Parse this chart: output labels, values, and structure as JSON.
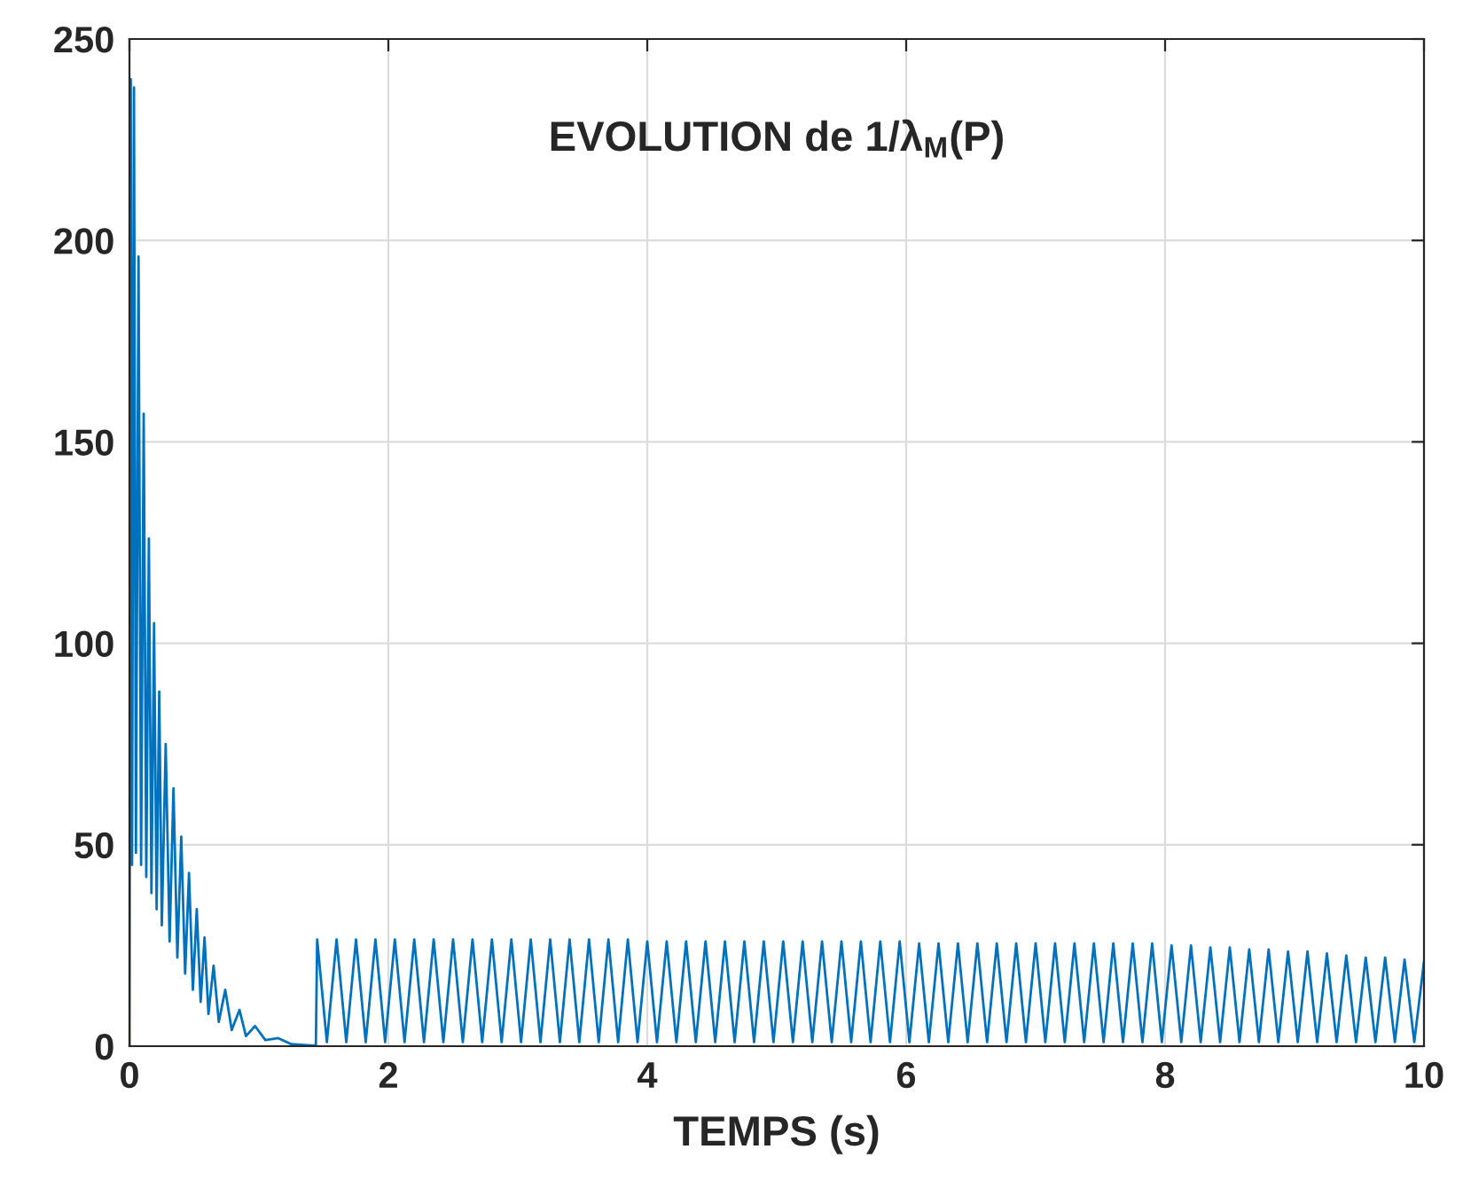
{
  "chart_data": {
    "type": "line",
    "title": "EVOLUTION de 1/λ$_{M}$(P)",
    "xlabel": "TEMPS (s)",
    "xlim": [
      0,
      10
    ],
    "xticks": [
      0,
      2,
      4,
      6,
      8,
      10
    ],
    "ylim": [
      0,
      250
    ],
    "yticks": [
      0,
      50,
      100,
      150,
      200,
      250
    ],
    "grid": true,
    "series": [
      {
        "color": "#0072bd",
        "x": [
          0,
          0.01,
          0.02,
          0.035,
          0.05,
          0.07,
          0.09,
          0.11,
          0.13,
          0.15,
          0.17,
          0.19,
          0.21,
          0.23,
          0.25,
          0.28,
          0.31,
          0.34,
          0.37,
          0.4,
          0.43,
          0.46,
          0.49,
          0.52,
          0.55,
          0.58,
          0.61,
          0.65,
          0.69,
          0.74,
          0.79,
          0.85,
          0.9,
          0.97,
          1.05,
          1.15,
          1.25,
          1.4,
          1.44,
          1.45,
          1.525,
          1.6,
          1.675,
          1.75,
          1.825,
          1.9,
          1.975,
          2.05,
          2.125,
          2.2,
          2.275,
          2.35,
          2.425,
          2.5,
          2.575,
          2.65,
          2.725,
          2.8,
          2.875,
          2.95,
          3.025,
          3.1,
          3.175,
          3.25,
          3.325,
          3.4,
          3.475,
          3.55,
          3.625,
          3.7,
          3.775,
          3.85,
          3.925,
          4.0,
          4.075,
          4.15,
          4.225,
          4.3,
          4.375,
          4.45,
          4.525,
          4.6,
          4.675,
          4.75,
          4.825,
          4.9,
          4.975,
          5.05,
          5.125,
          5.2,
          5.275,
          5.35,
          5.425,
          5.5,
          5.575,
          5.65,
          5.725,
          5.8,
          5.875,
          5.95,
          6.025,
          6.1,
          6.175,
          6.25,
          6.325,
          6.4,
          6.475,
          6.55,
          6.625,
          6.7,
          6.775,
          6.85,
          6.925,
          7.0,
          7.075,
          7.15,
          7.225,
          7.3,
          7.375,
          7.45,
          7.525,
          7.6,
          7.675,
          7.75,
          7.825,
          7.9,
          7.975,
          8.05,
          8.125,
          8.2,
          8.275,
          8.35,
          8.425,
          8.5,
          8.575,
          8.65,
          8.725,
          8.8,
          8.875,
          8.95,
          9.025,
          9.1,
          9.175,
          9.25,
          9.325,
          9.4,
          9.475,
          9.55,
          9.625,
          9.7,
          9.775,
          9.85,
          9.925,
          10.0
        ],
        "values": [
          0,
          240,
          45,
          238,
          48,
          196,
          45,
          157,
          42,
          126,
          38,
          105,
          34,
          88,
          30,
          75,
          26,
          64,
          22,
          52,
          18,
          43,
          14,
          34,
          11,
          27,
          8,
          20,
          6,
          14,
          4,
          9,
          2.5,
          5,
          1.5,
          2,
          0.5,
          0.2,
          0.2,
          26.5,
          1,
          26.5,
          1,
          26.5,
          1,
          26.5,
          1,
          26.5,
          1,
          26.5,
          1,
          26.5,
          1,
          26.5,
          1,
          26.5,
          1,
          26.5,
          1,
          26.5,
          1,
          26.5,
          1,
          26.5,
          1,
          26.5,
          1,
          26.5,
          1,
          26.5,
          1,
          26.5,
          1,
          26,
          1,
          26,
          1,
          26,
          1,
          26,
          1,
          26,
          1,
          26,
          1,
          26,
          1,
          26,
          1,
          26,
          1,
          26,
          1,
          26,
          1,
          26,
          1,
          26,
          1,
          26,
          1,
          25.5,
          1,
          25.5,
          1,
          25.5,
          1,
          25.5,
          1,
          25.5,
          1,
          25.5,
          1,
          25.5,
          1,
          25.5,
          1,
          25.5,
          1,
          25.5,
          1,
          25.5,
          1,
          25.5,
          1,
          25.5,
          1,
          25,
          1,
          25,
          1,
          24.5,
          1,
          24.5,
          1,
          24,
          1,
          24,
          1,
          23.5,
          1,
          23.5,
          1,
          23,
          1,
          22.5,
          1,
          22,
          1,
          22,
          1,
          21.5,
          1,
          21
        ]
      }
    ]
  }
}
